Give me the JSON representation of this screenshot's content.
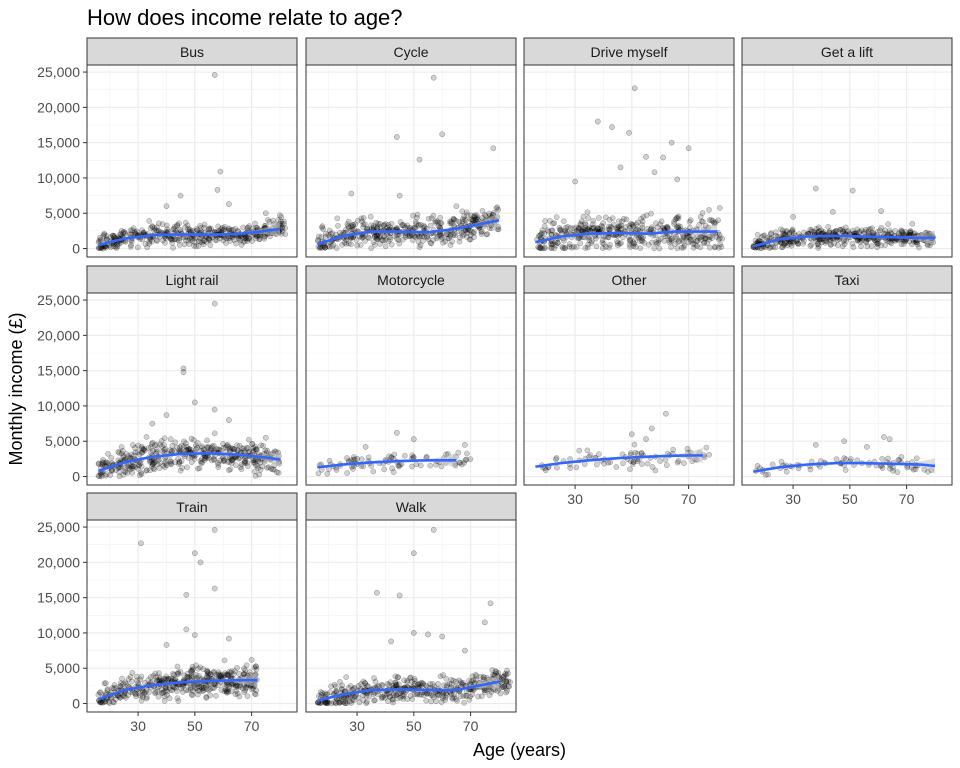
{
  "chart_data": {
    "type": "scatter",
    "title": "How does income relate to age?",
    "xlabel": "Age (years)",
    "ylabel": "Monthly income (£)",
    "xlim": [
      12,
      86
    ],
    "ylim": [
      -1200,
      26000
    ],
    "x_ticks": [
      30,
      50,
      70
    ],
    "x_tick_labels": [
      "30",
      "50",
      "70"
    ],
    "y_ticks": [
      0,
      5000,
      10000,
      15000,
      20000,
      25000
    ],
    "y_tick_labels": [
      "0",
      "5,000",
      "10,000",
      "15,000",
      "20,000",
      "25,000"
    ],
    "grid": true,
    "layout": "facets 4 columns x 3 rows",
    "point_color": "#000000",
    "smooth_color": "#3366ff",
    "ribbon_color": "#bfbfbf",
    "strip_fill": "#d9d9d9",
    "panels": [
      {
        "name": "Bus",
        "smooth": [
          [
            16,
            500
          ],
          [
            25,
            1400
          ],
          [
            35,
            1900
          ],
          [
            45,
            2000
          ],
          [
            55,
            1950
          ],
          [
            65,
            2050
          ],
          [
            75,
            2500
          ],
          [
            80,
            2800
          ]
        ],
        "cloud": {
          "xmin": 16,
          "xmax": 82,
          "peak": 1800,
          "spread": 1300
        },
        "outliers": [
          [
            57,
            24600
          ],
          [
            59,
            10900
          ],
          [
            58,
            8300
          ],
          [
            45,
            7500
          ],
          [
            62,
            6300
          ],
          [
            40,
            6000
          ],
          [
            75,
            5000
          ],
          [
            80,
            4700
          ]
        ]
      },
      {
        "name": "Cycle",
        "smooth": [
          [
            16,
            600
          ],
          [
            25,
            1800
          ],
          [
            35,
            2400
          ],
          [
            45,
            2400
          ],
          [
            55,
            2300
          ],
          [
            65,
            2800
          ],
          [
            75,
            3600
          ],
          [
            80,
            4000
          ]
        ],
        "cloud": {
          "xmin": 16,
          "xmax": 80,
          "peak": 2300,
          "spread": 1700
        },
        "outliers": [
          [
            57,
            24200
          ],
          [
            60,
            16200
          ],
          [
            44,
            15800
          ],
          [
            52,
            12600
          ],
          [
            78,
            14200
          ],
          [
            28,
            7800
          ],
          [
            45,
            7500
          ],
          [
            65,
            6000
          ]
        ]
      },
      {
        "name": "Drive myself",
        "smooth": [
          [
            16,
            900
          ],
          [
            25,
            1700
          ],
          [
            35,
            2100
          ],
          [
            45,
            2200
          ],
          [
            55,
            2100
          ],
          [
            65,
            2400
          ],
          [
            75,
            2400
          ],
          [
            80,
            2400
          ]
        ],
        "cloud": {
          "xmin": 16,
          "xmax": 82,
          "peak": 2200,
          "spread": 2300
        },
        "outliers": [
          [
            51,
            22700
          ],
          [
            38,
            18000
          ],
          [
            43,
            17200
          ],
          [
            49,
            16400
          ],
          [
            61,
            12900
          ],
          [
            64,
            15000
          ],
          [
            70,
            14200
          ],
          [
            55,
            13000
          ],
          [
            46,
            11500
          ],
          [
            58,
            10800
          ],
          [
            30,
            9500
          ],
          [
            66,
            9800
          ]
        ]
      },
      {
        "name": "Get a lift",
        "smooth": [
          [
            16,
            300
          ],
          [
            25,
            1300
          ],
          [
            35,
            1700
          ],
          [
            45,
            1800
          ],
          [
            55,
            1700
          ],
          [
            65,
            1600
          ],
          [
            75,
            1500
          ],
          [
            80,
            1500
          ]
        ],
        "cloud": {
          "xmin": 16,
          "xmax": 80,
          "peak": 1600,
          "spread": 1100
        },
        "outliers": [
          [
            38,
            8500
          ],
          [
            51,
            8200
          ],
          [
            61,
            5300
          ],
          [
            44,
            5200
          ],
          [
            30,
            4500
          ],
          [
            72,
            3500
          ]
        ]
      },
      {
        "name": "Light rail",
        "smooth": [
          [
            16,
            800
          ],
          [
            25,
            2000
          ],
          [
            35,
            2800
          ],
          [
            45,
            3200
          ],
          [
            55,
            3300
          ],
          [
            65,
            3100
          ],
          [
            75,
            2700
          ],
          [
            80,
            2400
          ]
        ],
        "cloud": {
          "xmin": 16,
          "xmax": 80,
          "peak": 3000,
          "spread": 1900
        },
        "outliers": [
          [
            57,
            24500
          ],
          [
            46,
            15300
          ],
          [
            46,
            14800
          ],
          [
            50,
            10500
          ],
          [
            57,
            9500
          ],
          [
            40,
            8700
          ],
          [
            62,
            8000
          ],
          [
            35,
            7500
          ],
          [
            75,
            5500
          ]
        ]
      },
      {
        "name": "Motorcycle",
        "smooth": [
          [
            16,
            1300
          ],
          [
            25,
            1700
          ],
          [
            35,
            2000
          ],
          [
            45,
            2200
          ],
          [
            55,
            2300
          ],
          [
            65,
            2300
          ]
        ],
        "cloud": {
          "xmin": 16,
          "xmax": 70,
          "peak": 2200,
          "spread": 1200,
          "n": 85
        },
        "outliers": [
          [
            44,
            6200
          ],
          [
            50,
            5300
          ],
          [
            68,
            4500
          ],
          [
            33,
            4200
          ]
        ]
      },
      {
        "name": "Other",
        "smooth": [
          [
            16,
            1400
          ],
          [
            25,
            1900
          ],
          [
            35,
            2300
          ],
          [
            45,
            2600
          ],
          [
            55,
            2800
          ],
          [
            65,
            2950
          ],
          [
            75,
            3000
          ]
        ],
        "cloud": {
          "xmin": 18,
          "xmax": 78,
          "peak": 2300,
          "spread": 1300,
          "n": 80
        },
        "outliers": [
          [
            62,
            8900
          ],
          [
            57,
            6800
          ],
          [
            50,
            6000
          ],
          [
            55,
            5300
          ]
        ]
      },
      {
        "name": "Taxi",
        "smooth": [
          [
            16,
            700
          ],
          [
            25,
            1300
          ],
          [
            35,
            1700
          ],
          [
            45,
            1900
          ],
          [
            55,
            1900
          ],
          [
            65,
            1800
          ],
          [
            75,
            1700
          ],
          [
            80,
            1500
          ]
        ],
        "cloud": {
          "xmin": 16,
          "xmax": 80,
          "peak": 1700,
          "spread": 900,
          "n": 75
        },
        "outliers": [
          [
            62,
            5600
          ],
          [
            64,
            5300
          ],
          [
            48,
            5000
          ],
          [
            38,
            4500
          ],
          [
            56,
            4200
          ]
        ]
      },
      {
        "name": "Train",
        "smooth": [
          [
            16,
            600
          ],
          [
            25,
            1900
          ],
          [
            35,
            2600
          ],
          [
            45,
            3000
          ],
          [
            55,
            3200
          ],
          [
            65,
            3300
          ],
          [
            72,
            3300
          ]
        ],
        "cloud": {
          "xmin": 16,
          "xmax": 72,
          "peak": 2800,
          "spread": 1800
        },
        "outliers": [
          [
            57,
            24600
          ],
          [
            31,
            22700
          ],
          [
            50,
            21300
          ],
          [
            52,
            20000
          ],
          [
            57,
            16300
          ],
          [
            47,
            15400
          ],
          [
            47,
            10500
          ],
          [
            62,
            9200
          ],
          [
            50,
            9700
          ],
          [
            70,
            6200
          ],
          [
            40,
            8300
          ]
        ]
      },
      {
        "name": "Walk",
        "smooth": [
          [
            16,
            400
          ],
          [
            25,
            1300
          ],
          [
            35,
            1900
          ],
          [
            45,
            2000
          ],
          [
            55,
            1900
          ],
          [
            65,
            1900
          ],
          [
            75,
            2700
          ],
          [
            80,
            3100
          ]
        ],
        "cloud": {
          "xmin": 16,
          "xmax": 84,
          "peak": 1700,
          "spread": 1700
        },
        "outliers": [
          [
            57,
            24600
          ],
          [
            50,
            21300
          ],
          [
            37,
            15700
          ],
          [
            45,
            15300
          ],
          [
            77,
            14200
          ],
          [
            75,
            11500
          ],
          [
            50,
            10000
          ],
          [
            60,
            9500
          ],
          [
            55,
            9800
          ],
          [
            68,
            7500
          ],
          [
            42,
            8800
          ]
        ]
      }
    ]
  }
}
